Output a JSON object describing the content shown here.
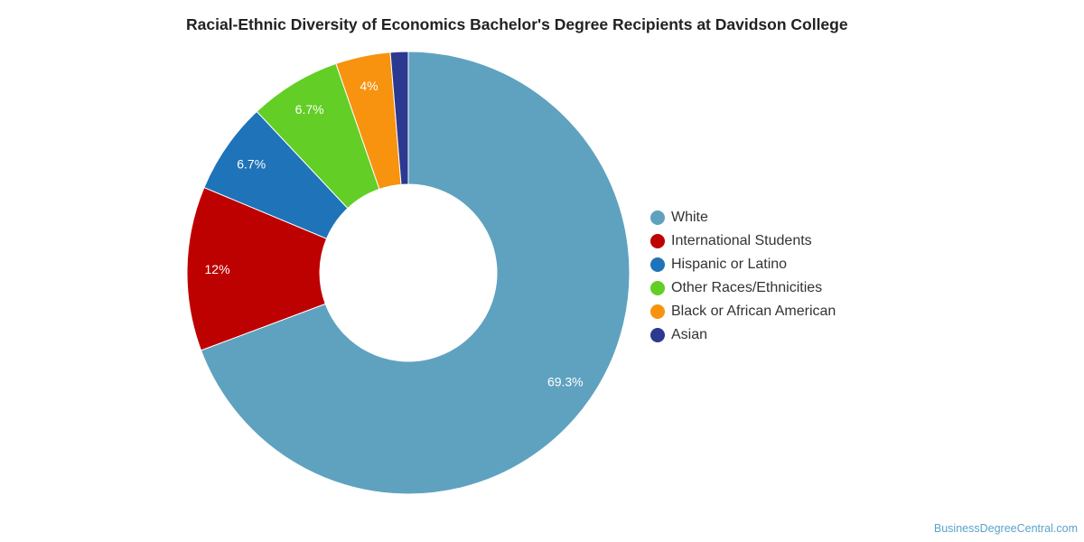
{
  "chart_data": {
    "type": "pie",
    "title": "Racial-Ethnic Diversity of Economics Bachelor's Degree Recipients at Davidson College",
    "donut": true,
    "legend_position": "right",
    "slices": [
      {
        "name": "White",
        "value": 69.3,
        "label": "69.3%",
        "color": "#5fa2c0"
      },
      {
        "name": "International Students",
        "value": 12,
        "label": "12%",
        "color": "#bd0000"
      },
      {
        "name": "Hispanic or Latino",
        "value": 6.7,
        "label": "6.7%",
        "color": "#1e73b9"
      },
      {
        "name": "Other Races/Ethnicities",
        "value": 6.7,
        "label": "6.7%",
        "color": "#62ce26"
      },
      {
        "name": "Black or African American",
        "value": 4,
        "label": "4%",
        "color": "#f7930f"
      },
      {
        "name": "Asian",
        "value": 1.3,
        "label": "",
        "color": "#2b3990"
      }
    ]
  },
  "footer": {
    "credit": "BusinessDegreeCentral.com"
  }
}
